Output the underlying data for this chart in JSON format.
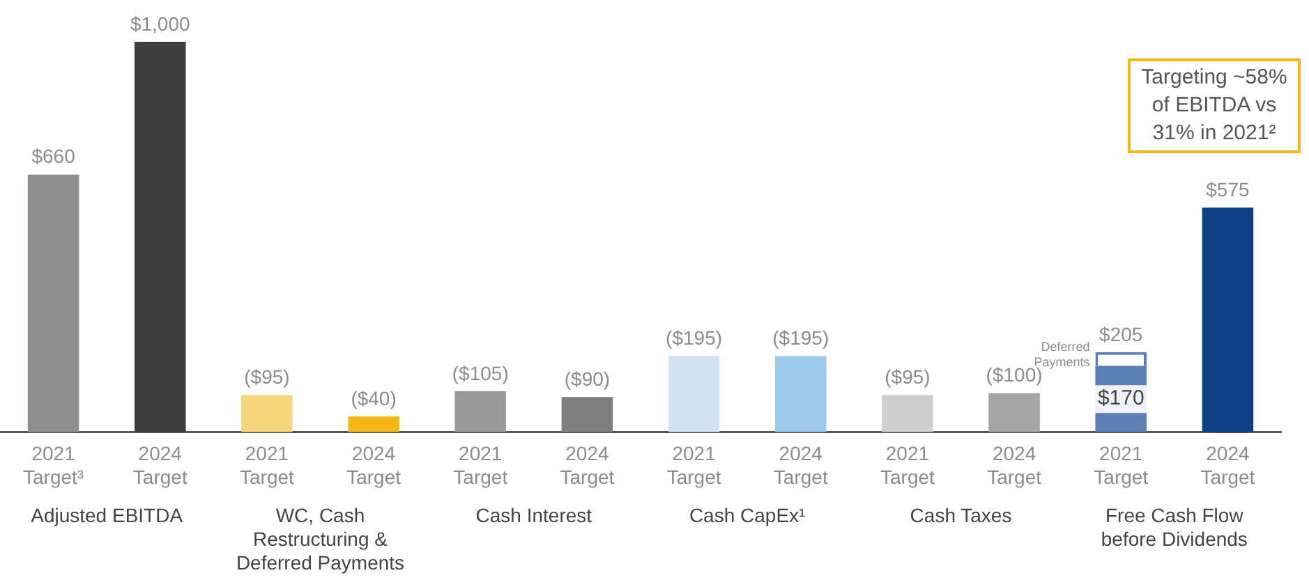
{
  "chart_data": {
    "type": "bar",
    "stacked": true,
    "legend": "bottom right",
    "grid": false,
    "categories": [
      "2021 Target³",
      "2024 Target",
      "2021 Target",
      "2024 Target",
      "2021 Target",
      "2024 Target",
      "2021 Target",
      "2024 Target",
      "2021 Target",
      "2024 Target",
      "2021 Target",
      "2024 Target"
    ],
    "series": [
      {
        "values": [
          660,
          1000,
          95,
          40,
          105,
          90,
          195,
          195,
          95,
          100,
          170,
          575
        ],
        "colors": [
          "#8f8f8f",
          "#3d3d3d",
          "#f7d77c",
          "#f5b716",
          "#9a9a9a",
          "#7f7f7f",
          "#cfe3f4",
          "#9ccaea",
          "#cfcfcf",
          "#a5a5a5",
          "#5b7fb5",
          "#0d3f86"
        ],
        "value_labels": [
          "$660",
          "$1,000",
          "($95)",
          "($40)",
          "($105)",
          "($90)",
          "($195)",
          "($195)",
          "($95)",
          "($100)",
          "$170",
          "$575"
        ]
      },
      {
        "name": "Deferred Payments",
        "color": "#5b7fb5",
        "values": [
          null,
          null,
          null,
          null,
          null,
          null,
          null,
          null,
          null,
          null,
          35,
          null
        ]
      }
    ],
    "totals": [
      null,
      null,
      null,
      null,
      null,
      null,
      null,
      null,
      null,
      null,
      "$205",
      null
    ],
    "annotations": [
      "Adjusted EBITDA",
      "WC, Cash Restructuring & Deferred Payments",
      "Cash Interest",
      "Cash CapEx¹",
      "Cash Taxes",
      "Free Cash Flow before Dividends",
      "Targeting ~58% of EBITDA vs 31% in 2021²"
    ]
  }
}
